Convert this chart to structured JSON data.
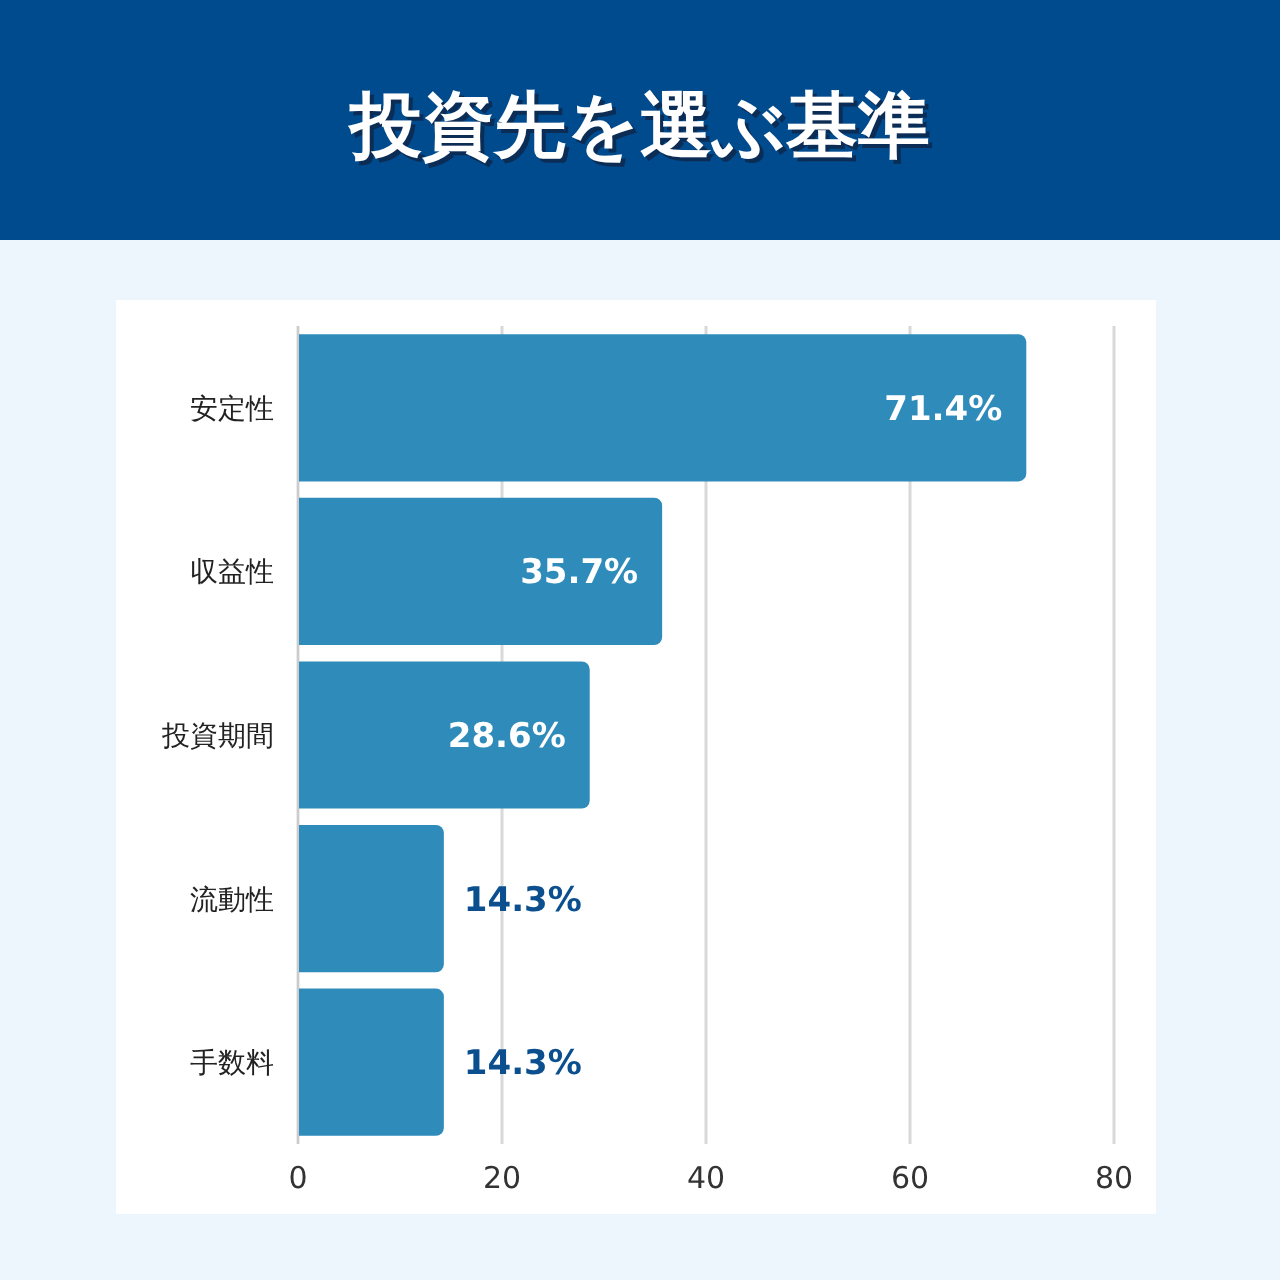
{
  "chart_data": {
    "type": "bar",
    "orientation": "horizontal",
    "title": "投資先を選ぶ基準",
    "categories": [
      "安定性",
      "収益性",
      "投資期間",
      "流動性",
      "手数料"
    ],
    "values": [
      71.4,
      35.7,
      28.6,
      14.3,
      14.3
    ],
    "value_labels": [
      "71.4%",
      "35.7%",
      "28.6%",
      "14.3%",
      "14.3%"
    ],
    "color": "#2e8bba",
    "xlim": [
      0,
      80
    ],
    "xticks": [
      0,
      20,
      40,
      60,
      80
    ],
    "grid": "x"
  }
}
